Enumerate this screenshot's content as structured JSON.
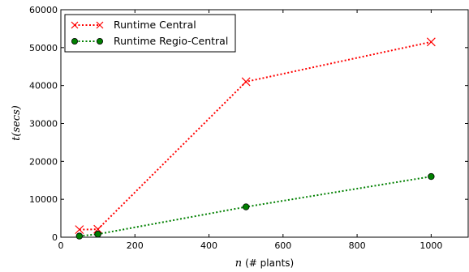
{
  "chart_data": {
    "type": "line",
    "xlabel_var": "n",
    "xlabel_rest": "(# plants)",
    "ylabel": "t(secs)",
    "xlim": [
      0,
      1100
    ],
    "ylim": [
      0,
      60000
    ],
    "xticks": [
      0,
      200,
      400,
      600,
      800,
      1000
    ],
    "yticks": [
      0,
      10000,
      20000,
      30000,
      40000,
      50000,
      60000
    ],
    "grid": false,
    "legend_position": "top-left",
    "series": [
      {
        "name": "Runtime Central",
        "color": "#ff0000",
        "marker": "x",
        "line_style": "dotted",
        "x": [
          50,
          100,
          500,
          1000
        ],
        "y": [
          2000,
          2100,
          41000,
          51500
        ]
      },
      {
        "name": "Runtime Regio-Central",
        "color": "#008000",
        "marker": "circle",
        "line_style": "dotted",
        "x": [
          50,
          100,
          500,
          1000
        ],
        "y": [
          300,
          800,
          8000,
          16000
        ]
      }
    ]
  }
}
